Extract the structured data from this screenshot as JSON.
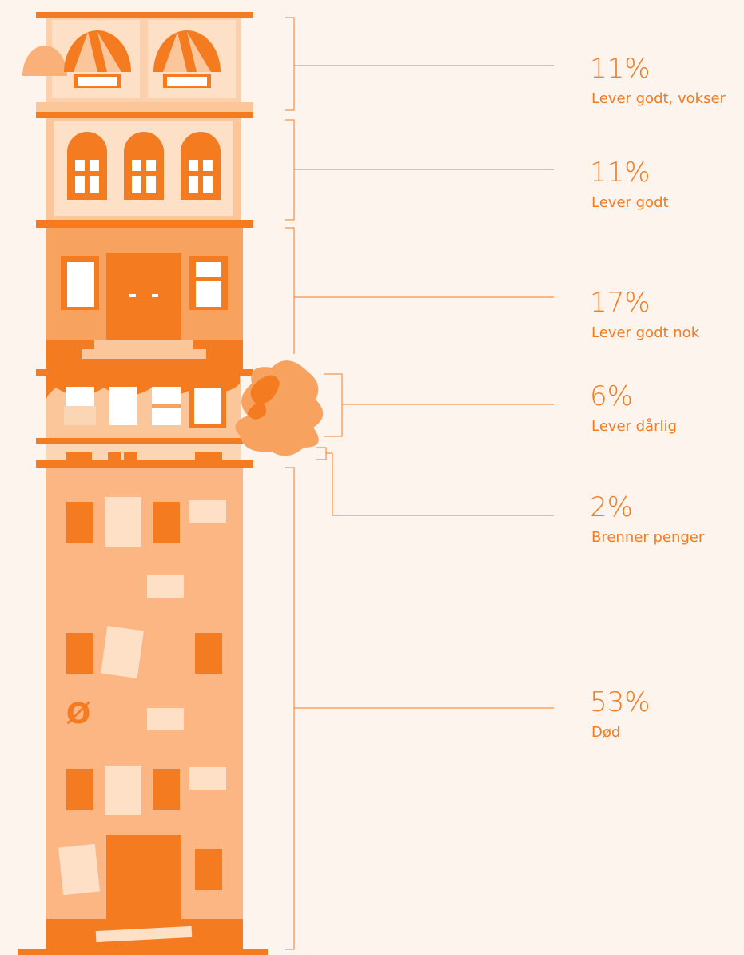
{
  "chart_data": {
    "type": "building",
    "categories": [
      "Lever godt, vokser",
      "Lever godt",
      "Lever godt nok",
      "Lever dårlig",
      "Brenner penger",
      "Død"
    ],
    "values": [
      11,
      11,
      17,
      6,
      2,
      53
    ],
    "value_labels": [
      "11%",
      "11%",
      "17%",
      "6%",
      "2%",
      "53%"
    ],
    "color": "#f47b20"
  }
}
